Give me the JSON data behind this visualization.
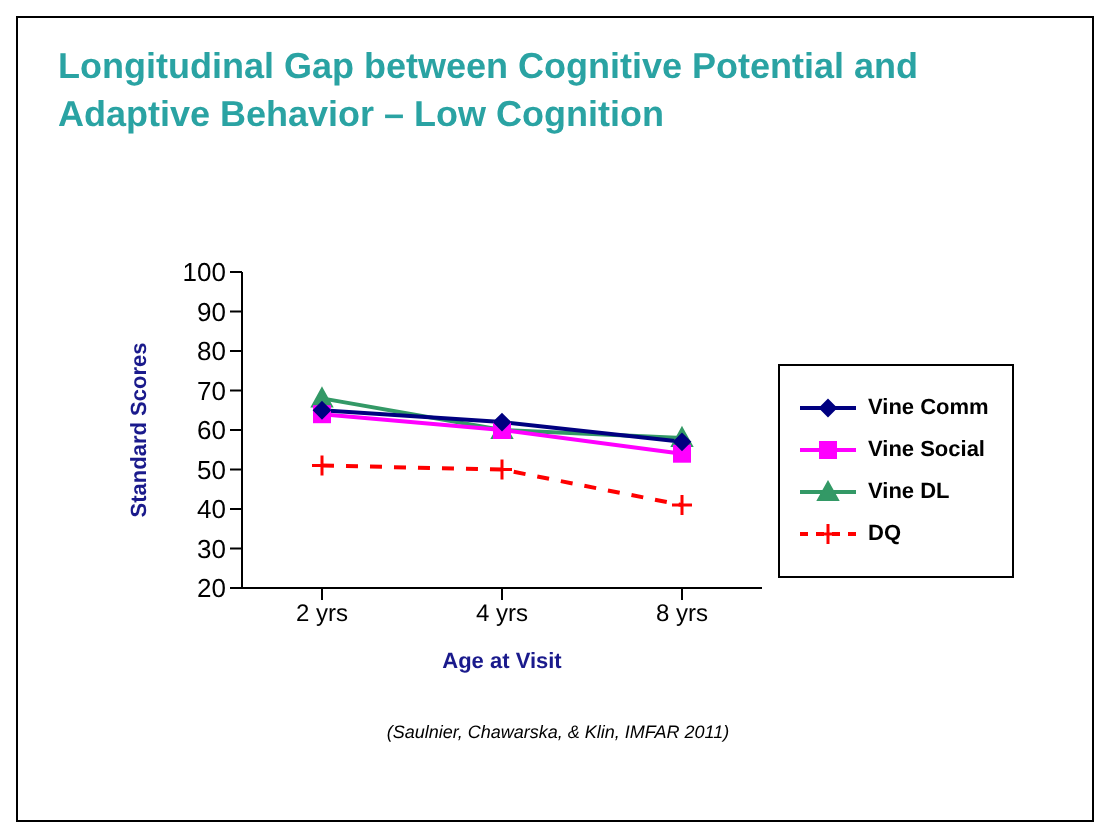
{
  "chart_data": {
    "type": "line",
    "title": "Longitudinal Gap between Cognitive Potential and Adaptive Behavior – Low Cognition",
    "xlabel": "Age at Visit",
    "ylabel": "Standard Scores",
    "categories": [
      "2 yrs",
      "4 yrs",
      "8 yrs"
    ],
    "series": [
      {
        "name": "Vine Comm",
        "color": "#000080",
        "values": [
          65,
          62,
          57
        ],
        "marker": "diamond",
        "line_style": "solid"
      },
      {
        "name": "Vine Social",
        "color": "#ff00ff",
        "values": [
          64,
          60,
          54
        ],
        "marker": "square",
        "line_style": "solid"
      },
      {
        "name": "Vine DL",
        "color": "#339966",
        "values": [
          68,
          60,
          58
        ],
        "marker": "triangle",
        "line_style": "solid"
      },
      {
        "name": "DQ",
        "color": "#ff0000",
        "values": [
          51,
          50,
          41
        ],
        "marker": "cross",
        "line_style": "dashed"
      }
    ],
    "ylim": [
      20,
      100
    ],
    "yticks": [
      20,
      30,
      40,
      50,
      60,
      70,
      80,
      90,
      100
    ],
    "grid": false,
    "legend": "right",
    "annotations": [
      "(Saulnier, Chawarska, & Klin, IMFAR 2011)"
    ]
  }
}
